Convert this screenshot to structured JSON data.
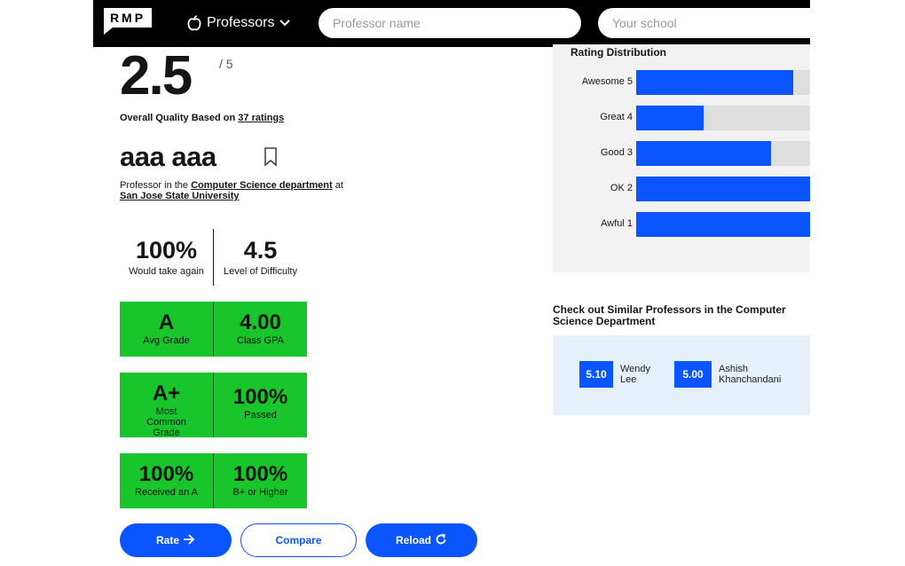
{
  "header": {
    "logo": "RMP",
    "professors_dropdown": "Professors",
    "professor_search_placeholder": "Professor name",
    "school_search_placeholder": "Your school"
  },
  "rating": {
    "value": "2.5",
    "out_of": "/ 5",
    "overall_prefix": "Overall Quality Based on",
    "ratings_link": "37 ratings"
  },
  "professor": {
    "name": "aaa aaa",
    "dept_prefix": "Professor in the",
    "dept_link": "Computer Science department",
    "dept_suffix": "at",
    "school_link": "San Jose State University"
  },
  "stats": [
    {
      "value": "100%",
      "label": "Would take again"
    },
    {
      "value": "4.5",
      "label": "Level of Difficulty"
    }
  ],
  "grade_blocks": [
    {
      "left": {
        "value": "A",
        "label": "Avg Grade"
      },
      "right": {
        "value": "4.00",
        "label": "Class GPA"
      }
    },
    {
      "left": {
        "value": "A+",
        "label": "Most Common Grade"
      },
      "right": {
        "value": "100%",
        "label": "Passed"
      }
    },
    {
      "left": {
        "value": "100%",
        "label": "Received an A"
      },
      "right": {
        "value": "100%",
        "label": "B+ or Higher"
      }
    }
  ],
  "buttons": {
    "rate": "Rate",
    "compare": "Compare",
    "reload": "Reload"
  },
  "distribution": {
    "title": "Rating Distribution",
    "rows": [
      {
        "label": "Awesome 5",
        "fraction": 0.86
      },
      {
        "label": "Great 4",
        "fraction": 0.37
      },
      {
        "label": "Good 3",
        "fraction": 0.74
      },
      {
        "label": "OK 2",
        "fraction": 1.0
      },
      {
        "label": "Awful 1",
        "fraction": 1.0
      }
    ]
  },
  "similar": {
    "title": "Check out Similar Professors in the Computer Science Department",
    "items": [
      {
        "score": "5.10",
        "name": "Wendy Lee"
      },
      {
        "score": "5.00",
        "name": "Ashish Khanchandani"
      }
    ]
  },
  "colors": {
    "accent_blue": "#0b55ff",
    "grade_green": "#18c62b",
    "header_black": "#000000"
  }
}
